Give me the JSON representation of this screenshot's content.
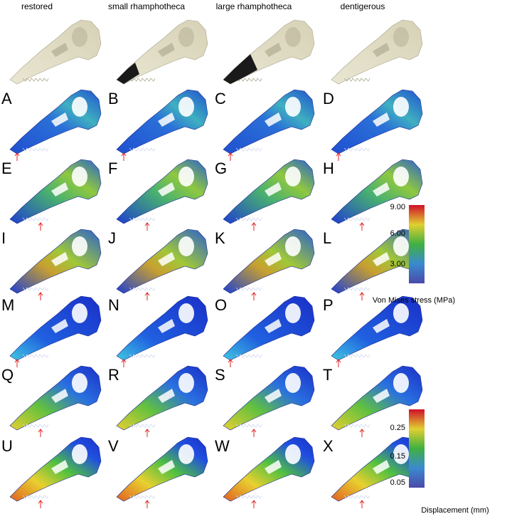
{
  "column_headers": [
    "restored",
    "small rhamphotheca",
    "large rhamphotheca",
    "dentigerous"
  ],
  "panel_labels": [
    "A",
    "B",
    "C",
    "D",
    "E",
    "F",
    "G",
    "H",
    "I",
    "J",
    "K",
    "L",
    "M",
    "N",
    "O",
    "P",
    "Q",
    "R",
    "S",
    "T",
    "U",
    "V",
    "W",
    "X"
  ],
  "stress_scale": {
    "ticks": [
      "9.00",
      "6.00",
      "3.00"
    ],
    "caption": "Von Mises stress (MPa)"
  },
  "displacement_scale": {
    "ticks": [
      "0.25",
      "0.15",
      "0.05"
    ],
    "caption": "Displacement (mm)"
  }
}
